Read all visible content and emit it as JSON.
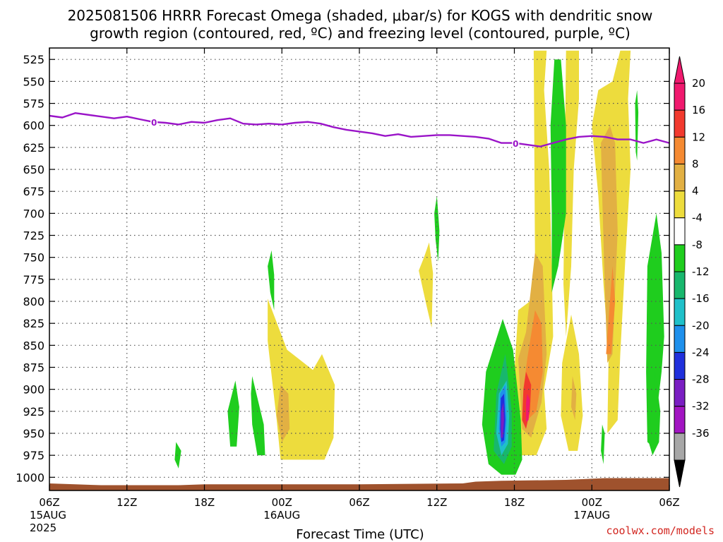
{
  "chart_data": {
    "type": "heatmap",
    "title_line1": "2025081506 HRRR Forecast Omega (shaded, μbar/s) for KOGS with dendritic snow",
    "title_line2": "growth region (contoured, red, ºC) and freezing level (contoured, purple, ºC)",
    "xlabel": "Forecast Time (UTC)",
    "credit": "coolwx.com/models",
    "x_range_hours": [
      0,
      48
    ],
    "y_range_mb": [
      1015,
      512
    ],
    "y_ticks": [
      "525",
      "550",
      "575",
      "600",
      "625",
      "650",
      "675",
      "700",
      "725",
      "750",
      "775",
      "800",
      "825",
      "850",
      "875",
      "900",
      "925",
      "950",
      "975",
      "1000"
    ],
    "x_ticks": [
      {
        "hour": 0,
        "label": "06Z",
        "date": "15AUG",
        "year": "2025"
      },
      {
        "hour": 6,
        "label": "12Z"
      },
      {
        "hour": 12,
        "label": "18Z"
      },
      {
        "hour": 18,
        "label": "00Z",
        "date": "16AUG"
      },
      {
        "hour": 24,
        "label": "06Z"
      },
      {
        "hour": 30,
        "label": "12Z"
      },
      {
        "hour": 36,
        "label": "18Z"
      },
      {
        "hour": 42,
        "label": "00Z",
        "date": "17AUG"
      },
      {
        "hour": 48,
        "label": "06Z"
      }
    ],
    "colorbar": {
      "labels": [
        "20",
        "16",
        "12",
        "8",
        "4",
        "-4",
        "-8",
        "-12",
        "-16",
        "-20",
        "-24",
        "-28",
        "-32",
        "-36"
      ],
      "colors": [
        "#f0196e",
        "#f23a2e",
        "#f58a32",
        "#e2b043",
        "#eddc3d",
        "#ffffff",
        "#1fcd1e",
        "#18b76d",
        "#1fc0c9",
        "#1e90ec",
        "#2030dc",
        "#7a1ec2",
        "#a215c2",
        "#a7a7a7"
      ]
    },
    "freezing_level": {
      "color": "#9a14c8",
      "label": "0",
      "label_hours": [
        8.1,
        36.1
      ],
      "points_hour_mb": [
        [
          0,
          589
        ],
        [
          1,
          591
        ],
        [
          2,
          586
        ],
        [
          4,
          590
        ],
        [
          5,
          592
        ],
        [
          6,
          590
        ],
        [
          7,
          593
        ],
        [
          8,
          596
        ],
        [
          9,
          597
        ],
        [
          10,
          599
        ],
        [
          11,
          596
        ],
        [
          12,
          597
        ],
        [
          13,
          594
        ],
        [
          14,
          592
        ],
        [
          15,
          598
        ],
        [
          16,
          599
        ],
        [
          17,
          598
        ],
        [
          18,
          599
        ],
        [
          19,
          597
        ],
        [
          20,
          596
        ],
        [
          21,
          598
        ],
        [
          22,
          602
        ],
        [
          23,
          605
        ],
        [
          24,
          607
        ],
        [
          25,
          609
        ],
        [
          26,
          612
        ],
        [
          27,
          610
        ],
        [
          28,
          613
        ],
        [
          29,
          612
        ],
        [
          30,
          611
        ],
        [
          31,
          611
        ],
        [
          32,
          612
        ],
        [
          33,
          613
        ],
        [
          34,
          615
        ],
        [
          35,
          620
        ],
        [
          36,
          620
        ],
        [
          37,
          622
        ],
        [
          38,
          624
        ],
        [
          39,
          620
        ],
        [
          40,
          616
        ],
        [
          41,
          613
        ],
        [
          42,
          612
        ],
        [
          43,
          613
        ],
        [
          44,
          616
        ],
        [
          45,
          616
        ],
        [
          46,
          620
        ],
        [
          47,
          616
        ],
        [
          48,
          620
        ]
      ]
    },
    "omega_areas": [
      {
        "color": "#eddc3d",
        "pts": [
          [
            16.9,
            797
          ],
          [
            18.4,
            855
          ],
          [
            20.4,
            878
          ],
          [
            21.1,
            860
          ],
          [
            22.1,
            895
          ],
          [
            22.0,
            955
          ],
          [
            21.3,
            980
          ],
          [
            17.9,
            980
          ],
          [
            17.6,
            935
          ],
          [
            16.9,
            845
          ]
        ]
      },
      {
        "color": "#e2b043",
        "pts": [
          [
            17.9,
            895
          ],
          [
            18.5,
            905
          ],
          [
            18.6,
            945
          ],
          [
            18.0,
            960
          ],
          [
            17.6,
            930
          ]
        ]
      },
      {
        "color": "#eddc3d",
        "pts": [
          [
            29.0,
            750
          ],
          [
            29.4,
            733
          ],
          [
            29.7,
            768
          ],
          [
            29.6,
            830
          ],
          [
            29.2,
            805
          ],
          [
            28.6,
            765
          ]
        ]
      },
      {
        "color": "#eddc3d",
        "pts": [
          [
            37.5,
            515
          ],
          [
            38.5,
            515
          ],
          [
            38.3,
            560
          ],
          [
            38.7,
            650
          ],
          [
            38.9,
            760
          ],
          [
            39.0,
            840
          ],
          [
            38.3,
            900
          ],
          [
            38.5,
            945
          ],
          [
            37.7,
            975
          ],
          [
            36.4,
            975
          ],
          [
            35.9,
            950
          ],
          [
            36.0,
            880
          ],
          [
            36.3,
            810
          ],
          [
            37.2,
            800
          ],
          [
            37.6,
            760
          ]
        ]
      },
      {
        "color": "#e2b043",
        "pts": [
          [
            37.6,
            745
          ],
          [
            38.2,
            760
          ],
          [
            38.5,
            860
          ],
          [
            38.1,
            915
          ],
          [
            37.3,
            955
          ],
          [
            36.6,
            945
          ],
          [
            36.3,
            865
          ],
          [
            36.9,
            835
          ]
        ]
      },
      {
        "color": "#f58a32",
        "pts": [
          [
            37.6,
            810
          ],
          [
            38.1,
            825
          ],
          [
            38.2,
            880
          ],
          [
            37.7,
            925
          ],
          [
            37.0,
            935
          ],
          [
            36.7,
            900
          ],
          [
            37.0,
            865
          ]
        ]
      },
      {
        "color": "#f23a2e",
        "pts": [
          [
            36.9,
            880
          ],
          [
            37.3,
            895
          ],
          [
            37.2,
            925
          ],
          [
            36.9,
            945
          ],
          [
            36.6,
            935
          ],
          [
            36.7,
            900
          ]
        ]
      },
      {
        "color": "#f0196e",
        "pts": [
          [
            37.0,
            905
          ],
          [
            37.2,
            912
          ],
          [
            37.1,
            935
          ],
          [
            36.9,
            937
          ],
          [
            36.9,
            915
          ]
        ]
      },
      {
        "color": "#eddc3d",
        "pts": [
          [
            40.0,
            515
          ],
          [
            41.0,
            515
          ],
          [
            41.0,
            570
          ],
          [
            40.6,
            650
          ],
          [
            40.4,
            760
          ],
          [
            40.0,
            840
          ],
          [
            39.8,
            780
          ],
          [
            39.9,
            650
          ]
        ]
      },
      {
        "color": "#eddc3d",
        "pts": [
          [
            40.4,
            815
          ],
          [
            41.0,
            860
          ],
          [
            41.3,
            930
          ],
          [
            40.9,
            970
          ],
          [
            40.2,
            970
          ],
          [
            39.6,
            930
          ],
          [
            39.7,
            870
          ]
        ]
      },
      {
        "color": "#e2b043",
        "pts": [
          [
            40.5,
            885
          ],
          [
            40.8,
            905
          ],
          [
            40.7,
            935
          ],
          [
            40.4,
            920
          ]
        ]
      },
      {
        "color": "#eddc3d",
        "pts": [
          [
            44.2,
            515
          ],
          [
            45.0,
            515
          ],
          [
            44.8,
            570
          ],
          [
            45.0,
            650
          ],
          [
            44.6,
            750
          ],
          [
            44.2,
            860
          ],
          [
            44.0,
            935
          ],
          [
            43.2,
            950
          ],
          [
            43.3,
            860
          ],
          [
            42.9,
            780
          ],
          [
            42.5,
            680
          ],
          [
            42.0,
            600
          ],
          [
            42.5,
            560
          ],
          [
            43.6,
            550
          ]
        ]
      },
      {
        "color": "#e2b043",
        "pts": [
          [
            43.4,
            600
          ],
          [
            43.8,
            620
          ],
          [
            44.0,
            720
          ],
          [
            43.6,
            860
          ],
          [
            43.2,
            870
          ],
          [
            43.0,
            780
          ],
          [
            42.8,
            680
          ],
          [
            42.7,
            620
          ]
        ]
      },
      {
        "color": "#f58a32",
        "pts": [
          [
            43.6,
            760
          ],
          [
            43.8,
            800
          ],
          [
            43.5,
            860
          ],
          [
            43.1,
            860
          ]
        ]
      },
      {
        "color": "#1fcd1e",
        "pts": [
          [
            39.1,
            525
          ],
          [
            39.6,
            525
          ],
          [
            40.0,
            600
          ],
          [
            40.0,
            700
          ],
          [
            39.4,
            760
          ],
          [
            38.9,
            790
          ],
          [
            38.9,
            700
          ],
          [
            38.8,
            600
          ]
        ]
      },
      {
        "color": "#1fcd1e",
        "pts": [
          [
            35.9,
            855
          ],
          [
            36.5,
            935
          ],
          [
            36.6,
            980
          ],
          [
            36.1,
            997
          ],
          [
            35.0,
            997
          ],
          [
            34.0,
            985
          ],
          [
            33.5,
            940
          ],
          [
            33.8,
            880
          ],
          [
            35.1,
            820
          ]
        ]
      },
      {
        "color": "#18b76d",
        "pts": [
          [
            35.3,
            860
          ],
          [
            35.8,
            925
          ],
          [
            35.8,
            965
          ],
          [
            35.2,
            985
          ],
          [
            34.4,
            970
          ],
          [
            34.6,
            905
          ]
        ]
      },
      {
        "color": "#1fc0c9",
        "pts": [
          [
            35.4,
            890
          ],
          [
            35.6,
            930
          ],
          [
            35.5,
            962
          ],
          [
            35.0,
            975
          ],
          [
            34.6,
            950
          ],
          [
            34.8,
            905
          ]
        ]
      },
      {
        "color": "#1e90ec",
        "pts": [
          [
            35.3,
            895
          ],
          [
            35.4,
            935
          ],
          [
            35.3,
            960
          ],
          [
            35.0,
            965
          ],
          [
            34.8,
            945
          ],
          [
            34.9,
            905
          ]
        ]
      },
      {
        "color": "#2030dc",
        "pts": [
          [
            35.2,
            905
          ],
          [
            35.3,
            935
          ],
          [
            35.2,
            958
          ],
          [
            35.0,
            960
          ],
          [
            34.9,
            945
          ],
          [
            34.95,
            910
          ]
        ]
      },
      {
        "color": "#7a1ec2",
        "pts": [
          [
            35.15,
            915
          ],
          [
            35.2,
            935
          ],
          [
            35.1,
            955
          ],
          [
            34.95,
            955
          ],
          [
            34.98,
            925
          ]
        ]
      },
      {
        "color": "#1fcd1e",
        "pts": [
          [
            47.0,
            700
          ],
          [
            47.4,
            745
          ],
          [
            47.6,
            840
          ],
          [
            47.4,
            880
          ],
          [
            47.0,
            930
          ],
          [
            46.7,
            965
          ],
          [
            46.3,
            960
          ],
          [
            46.2,
            880
          ],
          [
            46.3,
            760
          ]
        ]
      },
      {
        "color": "#1fcd1e",
        "pts": [
          [
            46.9,
            880
          ],
          [
            47.3,
            925
          ],
          [
            47.2,
            960
          ],
          [
            46.7,
            975
          ],
          [
            46.4,
            960
          ]
        ]
      },
      {
        "color": "#1fcd1e",
        "pts": [
          [
            45.5,
            560
          ],
          [
            45.6,
            585
          ],
          [
            45.5,
            640
          ],
          [
            45.4,
            630
          ],
          [
            45.35,
            575
          ]
        ]
      },
      {
        "color": "#1fcd1e",
        "pts": [
          [
            42.8,
            940
          ],
          [
            43.0,
            950
          ],
          [
            42.9,
            985
          ],
          [
            42.7,
            970
          ]
        ]
      },
      {
        "color": "#1fcd1e",
        "pts": [
          [
            17.2,
            742
          ],
          [
            17.4,
            770
          ],
          [
            17.4,
            810
          ],
          [
            17.1,
            790
          ],
          [
            16.9,
            760
          ]
        ]
      },
      {
        "color": "#1fcd1e",
        "pts": [
          [
            30.0,
            680
          ],
          [
            30.2,
            720
          ],
          [
            30.1,
            755
          ],
          [
            29.9,
            730
          ],
          [
            29.8,
            700
          ]
        ]
      },
      {
        "color": "#1fcd1e",
        "pts": [
          [
            14.4,
            890
          ],
          [
            14.7,
            920
          ],
          [
            14.5,
            965
          ],
          [
            14.0,
            965
          ],
          [
            13.8,
            925
          ]
        ]
      },
      {
        "color": "#1fcd1e",
        "pts": [
          [
            15.7,
            885
          ],
          [
            16.6,
            940
          ],
          [
            16.7,
            975
          ],
          [
            16.1,
            975
          ],
          [
            15.7,
            940
          ],
          [
            15.6,
            905
          ]
        ]
      },
      {
        "color": "#1fcd1e",
        "pts": [
          [
            9.8,
            960
          ],
          [
            10.2,
            970
          ],
          [
            10.0,
            990
          ],
          [
            9.7,
            980
          ]
        ]
      }
    ],
    "terrain": {
      "color": "#9f522d",
      "points_hour_mb": [
        [
          0,
          1007
        ],
        [
          2,
          1008
        ],
        [
          4,
          1009
        ],
        [
          10,
          1009
        ],
        [
          12,
          1008
        ],
        [
          18,
          1008
        ],
        [
          24,
          1008
        ],
        [
          32,
          1007
        ],
        [
          33,
          1005
        ],
        [
          35,
          1004
        ],
        [
          40,
          1003
        ],
        [
          43,
          1001
        ],
        [
          48,
          1001
        ]
      ]
    }
  }
}
